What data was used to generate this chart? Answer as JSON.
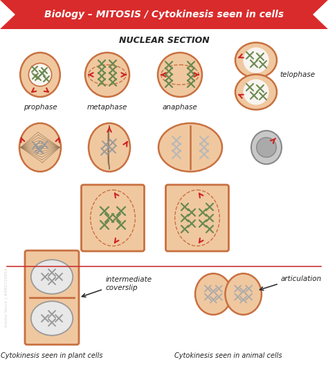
{
  "title": "Biology – MITOSIS / Cytokinesis seen in cells",
  "title_bg": "#d92b2b",
  "title_color": "#ffffff",
  "nuclear_section_label": "NUCLEAR SECTION",
  "background_color": "#ffffff",
  "cell_fill": "#f0c8a0",
  "cell_edge": "#c87040",
  "chromosome_color": "#6a8a50",
  "spindle_color": "#8b7355",
  "arrow_color": "#cc2222",
  "dashed_color": "#c87040",
  "phase_labels": [
    "prophase",
    "metaphase",
    "anaphase",
    "telophase"
  ],
  "bottom_labels": [
    "Cytokinesis seen in plant cells",
    "Cytokinesis seen in animal cells"
  ],
  "intermediate_label": "intermediate\ncoverslip",
  "articulation_label": "articulation",
  "separator_color": "#cc3333",
  "gray_chrom": "#999999",
  "gray_cell_fill": "#c8c8c8",
  "gray_cell_edge": "#888888"
}
